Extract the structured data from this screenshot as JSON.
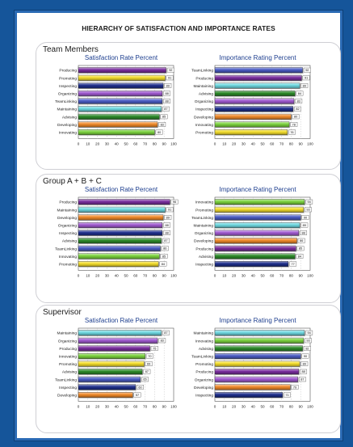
{
  "title": "HIERARCHY OF SATISFACTION AND IMPORTANCE RATES",
  "chart_data": [
    {
      "group": "Team Members",
      "type": "bar",
      "orientation": "horizontal",
      "title": "Satisfaction Rate Percent",
      "xlim": [
        0,
        100
      ],
      "x_ticks": [
        "0",
        "10",
        "20",
        "30",
        "40",
        "50",
        "60",
        "70",
        "80",
        "90",
        "100"
      ],
      "categories": [
        "Producing",
        "Promoting",
        "Inspecting",
        "Organizing",
        "TeamLinking",
        "Maintaining",
        "Advising",
        "Developing",
        "Innovating"
      ],
      "values": [
        92,
        91,
        89,
        88,
        88,
        87,
        85,
        83,
        80
      ],
      "data_labels": [
        "92",
        "91",
        "89",
        "88",
        "88",
        "87",
        "85",
        "83",
        "80"
      ],
      "colors": [
        "#7a2e9e",
        "#f2dc2c",
        "#1f2f8c",
        "#a05ad0",
        "#4b5cc4",
        "#6ed8e0",
        "#2d8a2a",
        "#f08a2a",
        "#7bd23e"
      ]
    },
    {
      "group": "Team Members",
      "type": "bar",
      "orientation": "horizontal",
      "title": "Importance Rating Percent",
      "xlim": [
        0,
        100
      ],
      "x_ticks": [
        "0",
        "10",
        "20",
        "30",
        "40",
        "50",
        "60",
        "70",
        "80",
        "90",
        "100"
      ],
      "categories": [
        "TeamLinking",
        "Producing",
        "Maintaining",
        "Advising",
        "Organizing",
        "Inspecting",
        "Developing",
        "Innovating",
        "Promoting"
      ],
      "values": [
        92,
        91,
        89,
        84,
        83,
        82,
        80,
        78,
        76
      ],
      "data_labels": [
        "92",
        "91",
        "89",
        "84",
        "83",
        "82",
        "80",
        "78",
        "76"
      ],
      "colors": [
        "#4b5cc4",
        "#7a2e9e",
        "#6ed8e0",
        "#2d8a2a",
        "#a05ad0",
        "#1f2f8c",
        "#f08a2a",
        "#7bd23e",
        "#f2dc2c"
      ]
    },
    {
      "group": "Group A + B + C",
      "type": "bar",
      "orientation": "horizontal",
      "title": "Satisfaction Rate Percent",
      "xlim": [
        0,
        100
      ],
      "x_ticks": [
        "0",
        "10",
        "20",
        "30",
        "40",
        "50",
        "60",
        "70",
        "80",
        "90",
        "100"
      ],
      "categories": [
        "Producing",
        "Maintaining",
        "Developing",
        "Organizing",
        "Inspecting",
        "Advising",
        "TeamLinking",
        "Innovating",
        "Promoting"
      ],
      "values": [
        96,
        91,
        89,
        88,
        88,
        87,
        86,
        85,
        84
      ],
      "data_labels": [
        "96",
        "91",
        "89",
        "88",
        "88",
        "87",
        "86",
        "85",
        "84"
      ],
      "colors": [
        "#7a2e9e",
        "#6ed8e0",
        "#f08a2a",
        "#a05ad0",
        "#1f2f8c",
        "#2d8a2a",
        "#4b5cc4",
        "#7bd23e",
        "#f2dc2c"
      ]
    },
    {
      "group": "Group A + B + C",
      "type": "bar",
      "orientation": "horizontal",
      "title": "Importance Rating Percent",
      "xlim": [
        0,
        100
      ],
      "x_ticks": [
        "0",
        "10",
        "20",
        "30",
        "40",
        "50",
        "60",
        "70",
        "80",
        "90",
        "100"
      ],
      "categories": [
        "Innovating",
        "Promoting",
        "TeamLinking",
        "Maintaining",
        "Organizing",
        "Developing",
        "Producing",
        "Advising",
        "Inspecting"
      ],
      "values": [
        94,
        93,
        90,
        89,
        88,
        86,
        85,
        84,
        77
      ],
      "data_labels": [
        "94",
        "93",
        "90",
        "89",
        "88",
        "86",
        "85",
        "84",
        "77"
      ],
      "colors": [
        "#7bd23e",
        "#f2dc2c",
        "#4b5cc4",
        "#6ed8e0",
        "#a05ad0",
        "#f08a2a",
        "#7a2e9e",
        "#2d8a2a",
        "#1f2f8c"
      ]
    },
    {
      "group": "Supervisor",
      "type": "bar",
      "orientation": "horizontal",
      "title": "Satisfaction Rate Percent",
      "xlim": [
        0,
        100
      ],
      "x_ticks": [
        "0",
        "10",
        "20",
        "30",
        "40",
        "50",
        "60",
        "70",
        "80",
        "90",
        "100"
      ],
      "categories": [
        "Maintaining",
        "Organizing",
        "Producing",
        "Innovating",
        "Promoting",
        "Advising",
        "TeamLinking",
        "Inspecting",
        "Developing"
      ],
      "values": [
        87,
        83,
        75,
        70,
        69,
        67,
        65,
        60,
        57
      ],
      "data_labels": [
        "87",
        "83",
        "75",
        "70",
        "69",
        "67",
        "65",
        "60",
        "57"
      ],
      "colors": [
        "#6ed8e0",
        "#a05ad0",
        "#7a2e9e",
        "#7bd23e",
        "#f2dc2c",
        "#2d8a2a",
        "#4b5cc4",
        "#1f2f8c",
        "#f08a2a"
      ]
    },
    {
      "group": "Supervisor",
      "type": "bar",
      "orientation": "horizontal",
      "title": "Importance Rating Percent",
      "xlim": [
        0,
        100
      ],
      "x_ticks": [
        "0",
        "10",
        "20",
        "30",
        "40",
        "50",
        "60",
        "70",
        "80",
        "90",
        "100"
      ],
      "categories": [
        "Maintaining",
        "Innovating",
        "Advising",
        "TeamLinking",
        "Promoting",
        "Producing",
        "Organizing",
        "Developing",
        "Inspecting"
      ],
      "values": [
        94,
        93,
        92,
        90,
        89,
        88,
        87,
        79,
        71
      ],
      "data_labels": [
        "94",
        "93",
        "92",
        "90",
        "89",
        "88",
        "87",
        "79",
        "71"
      ],
      "colors": [
        "#6ed8e0",
        "#7bd23e",
        "#2d8a2a",
        "#4b5cc4",
        "#f2dc2c",
        "#7a2e9e",
        "#a05ad0",
        "#f08a2a",
        "#1f2f8c"
      ]
    }
  ]
}
